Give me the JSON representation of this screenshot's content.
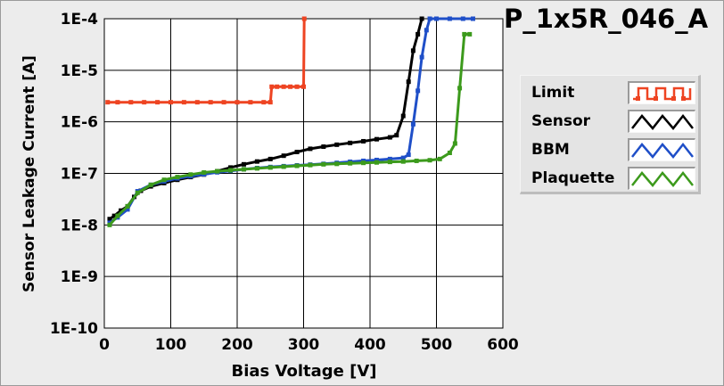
{
  "chart_data": {
    "type": "line",
    "title": "P_1x5R_046_A",
    "xlabel": "Bias Voltage [V]",
    "ylabel": "Sensor Leakage Current [A]",
    "xlim": [
      0,
      600
    ],
    "ylim": [
      1e-10,
      0.0001
    ],
    "y_scale": "log",
    "grid": true,
    "legend_position": "right",
    "x_ticks": [
      "0",
      "100",
      "200",
      "300",
      "400",
      "500",
      "600"
    ],
    "y_ticks": [
      "1E-10",
      "1E-9",
      "1E-8",
      "1E-7",
      "1E-6",
      "1E-5",
      "1E-4"
    ],
    "series": [
      {
        "name": "Limit",
        "color": "#ee4422",
        "legend_pattern": "square-wave",
        "points": [
          [
            5,
            2.4e-06
          ],
          [
            20,
            2.4e-06
          ],
          [
            40,
            2.4e-06
          ],
          [
            60,
            2.4e-06
          ],
          [
            80,
            2.4e-06
          ],
          [
            100,
            2.4e-06
          ],
          [
            120,
            2.4e-06
          ],
          [
            140,
            2.4e-06
          ],
          [
            160,
            2.4e-06
          ],
          [
            180,
            2.4e-06
          ],
          [
            200,
            2.4e-06
          ],
          [
            220,
            2.4e-06
          ],
          [
            240,
            2.4e-06
          ],
          [
            250,
            2.4e-06
          ],
          [
            252,
            4.8e-06
          ],
          [
            260,
            4.8e-06
          ],
          [
            270,
            4.8e-06
          ],
          [
            280,
            4.8e-06
          ],
          [
            290,
            4.8e-06
          ],
          [
            300,
            4.8e-06
          ],
          [
            301,
            0.0001
          ]
        ]
      },
      {
        "name": "Sensor",
        "color": "#000000",
        "legend_pattern": "triangle-wave",
        "points": [
          [
            8,
            1.3e-08
          ],
          [
            15,
            1.5e-08
          ],
          [
            25,
            1.9e-08
          ],
          [
            35,
            2.3e-08
          ],
          [
            45,
            3.5e-08
          ],
          [
            55,
            4.6e-08
          ],
          [
            70,
            5.6e-08
          ],
          [
            90,
            6.5e-08
          ],
          [
            110,
            7.5e-08
          ],
          [
            130,
            8.5e-08
          ],
          [
            150,
            9.5e-08
          ],
          [
            170,
            1.1e-07
          ],
          [
            190,
            1.3e-07
          ],
          [
            210,
            1.5e-07
          ],
          [
            230,
            1.7e-07
          ],
          [
            250,
            1.9e-07
          ],
          [
            270,
            2.2e-07
          ],
          [
            290,
            2.6e-07
          ],
          [
            310,
            3e-07
          ],
          [
            330,
            3.3e-07
          ],
          [
            350,
            3.6e-07
          ],
          [
            370,
            3.9e-07
          ],
          [
            390,
            4.2e-07
          ],
          [
            410,
            4.6e-07
          ],
          [
            430,
            5e-07
          ],
          [
            440,
            5.5e-07
          ],
          [
            450,
            1.3e-06
          ],
          [
            458,
            6e-06
          ],
          [
            465,
            2.4e-05
          ],
          [
            472,
            5e-05
          ],
          [
            478,
            0.0001
          ]
        ]
      },
      {
        "name": "BBM",
        "color": "#1f4fc8",
        "legend_pattern": "triangle-wave",
        "points": [
          [
            8,
            1.1e-08
          ],
          [
            20,
            1.4e-08
          ],
          [
            35,
            2e-08
          ],
          [
            50,
            4.5e-08
          ],
          [
            70,
            6e-08
          ],
          [
            90,
            7e-08
          ],
          [
            110,
            8e-08
          ],
          [
            130,
            8.8e-08
          ],
          [
            150,
            9.6e-08
          ],
          [
            170,
            1.05e-07
          ],
          [
            190,
            1.12e-07
          ],
          [
            210,
            1.2e-07
          ],
          [
            230,
            1.27e-07
          ],
          [
            250,
            1.33e-07
          ],
          [
            270,
            1.38e-07
          ],
          [
            290,
            1.43e-07
          ],
          [
            310,
            1.48e-07
          ],
          [
            330,
            1.53e-07
          ],
          [
            350,
            1.6e-07
          ],
          [
            370,
            1.68e-07
          ],
          [
            390,
            1.75e-07
          ],
          [
            410,
            1.82e-07
          ],
          [
            430,
            1.9e-07
          ],
          [
            450,
            2e-07
          ],
          [
            458,
            2.3e-07
          ],
          [
            465,
            9e-07
          ],
          [
            472,
            4e-06
          ],
          [
            478,
            1.8e-05
          ],
          [
            485,
            6e-05
          ],
          [
            490,
            0.0001
          ],
          [
            500,
            0.0001
          ],
          [
            520,
            0.0001
          ],
          [
            540,
            0.0001
          ],
          [
            555,
            0.0001
          ]
        ]
      },
      {
        "name": "Plaquette",
        "color": "#3c9a1c",
        "legend_pattern": "triangle-wave",
        "points": [
          [
            8,
            1e-08
          ],
          [
            20,
            1.5e-08
          ],
          [
            35,
            2.3e-08
          ],
          [
            50,
            4.2e-08
          ],
          [
            70,
            6e-08
          ],
          [
            90,
            7.5e-08
          ],
          [
            110,
            8.5e-08
          ],
          [
            130,
            9.5e-08
          ],
          [
            150,
            1.04e-07
          ],
          [
            170,
            1.1e-07
          ],
          [
            190,
            1.15e-07
          ],
          [
            210,
            1.2e-07
          ],
          [
            230,
            1.25e-07
          ],
          [
            250,
            1.3e-07
          ],
          [
            270,
            1.35e-07
          ],
          [
            290,
            1.4e-07
          ],
          [
            310,
            1.45e-07
          ],
          [
            330,
            1.5e-07
          ],
          [
            350,
            1.53e-07
          ],
          [
            370,
            1.57e-07
          ],
          [
            390,
            1.6e-07
          ],
          [
            410,
            1.63e-07
          ],
          [
            430,
            1.67e-07
          ],
          [
            450,
            1.7e-07
          ],
          [
            470,
            1.75e-07
          ],
          [
            490,
            1.8e-07
          ],
          [
            505,
            1.9e-07
          ],
          [
            520,
            2.5e-07
          ],
          [
            528,
            3.8e-07
          ],
          [
            535,
            4.5e-06
          ],
          [
            542,
            5e-05
          ],
          [
            550,
            5e-05
          ]
        ]
      }
    ]
  }
}
